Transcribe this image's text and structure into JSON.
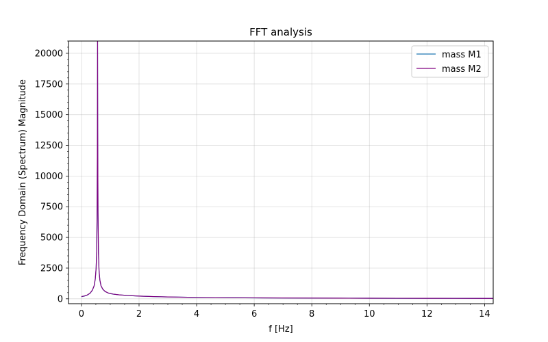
{
  "chart_data": {
    "type": "line",
    "title": "FFT analysis",
    "xlabel": "f [Hz]",
    "ylabel": "Frequency Domain (Spectrum) Magnitude",
    "xlim": [
      -0.45,
      14.3
    ],
    "ylim": [
      -400,
      21000
    ],
    "xticks": [
      0,
      2,
      4,
      6,
      8,
      10,
      12,
      14
    ],
    "yticks": [
      0,
      2500,
      5000,
      7500,
      10000,
      12500,
      15000,
      17500,
      20000
    ],
    "xtick_labels": [
      "0",
      "2",
      "4",
      "6",
      "8",
      "10",
      "12",
      "14"
    ],
    "ytick_labels": [
      "0",
      "2500",
      "5000",
      "7500",
      "10000",
      "12500",
      "15000",
      "17500",
      "20000"
    ],
    "grid": true,
    "legend_position": "top-right",
    "series": [
      {
        "name": "mass M1",
        "color": "#1f77b4",
        "x": [
          0.0,
          0.1,
          0.2,
          0.3,
          0.38,
          0.44,
          0.48,
          0.51,
          0.53,
          0.545,
          0.555,
          0.56,
          0.565,
          0.575,
          0.59,
          0.61,
          0.64,
          0.68,
          0.74,
          0.82,
          0.95,
          1.1,
          1.3,
          1.6,
          2.0,
          2.5,
          3.0,
          4.0,
          5.0,
          6.0,
          7.0,
          8.0,
          9.0,
          10.0,
          11.0,
          12.0,
          13.0,
          14.0,
          14.3
        ],
        "y": [
          170,
          220,
          300,
          450,
          700,
          1050,
          1600,
          2500,
          4000,
          7500,
          13500,
          21000,
          13500,
          7000,
          3800,
          2300,
          1500,
          1050,
          780,
          590,
          450,
          380,
          320,
          270,
          220,
          180,
          150,
          110,
          90,
          75,
          65,
          57,
          50,
          45,
          41,
          38,
          35,
          32,
          32
        ]
      },
      {
        "name": "mass M2",
        "color": "#800080",
        "x": [
          0.0,
          0.1,
          0.2,
          0.3,
          0.38,
          0.44,
          0.48,
          0.51,
          0.53,
          0.545,
          0.555,
          0.56,
          0.565,
          0.575,
          0.59,
          0.61,
          0.64,
          0.68,
          0.74,
          0.82,
          0.95,
          1.1,
          1.3,
          1.6,
          2.0,
          2.5,
          3.0,
          4.0,
          5.0,
          6.0,
          7.0,
          8.0,
          9.0,
          10.0,
          11.0,
          12.0,
          13.0,
          14.0,
          14.3
        ],
        "y": [
          180,
          230,
          310,
          460,
          710,
          1060,
          1620,
          2520,
          4050,
          7600,
          13700,
          21000,
          13600,
          7100,
          3850,
          2330,
          1520,
          1060,
          790,
          600,
          455,
          385,
          325,
          272,
          222,
          182,
          152,
          112,
          92,
          77,
          66,
          58,
          51,
          46,
          42,
          39,
          36,
          33,
          33
        ]
      }
    ]
  }
}
